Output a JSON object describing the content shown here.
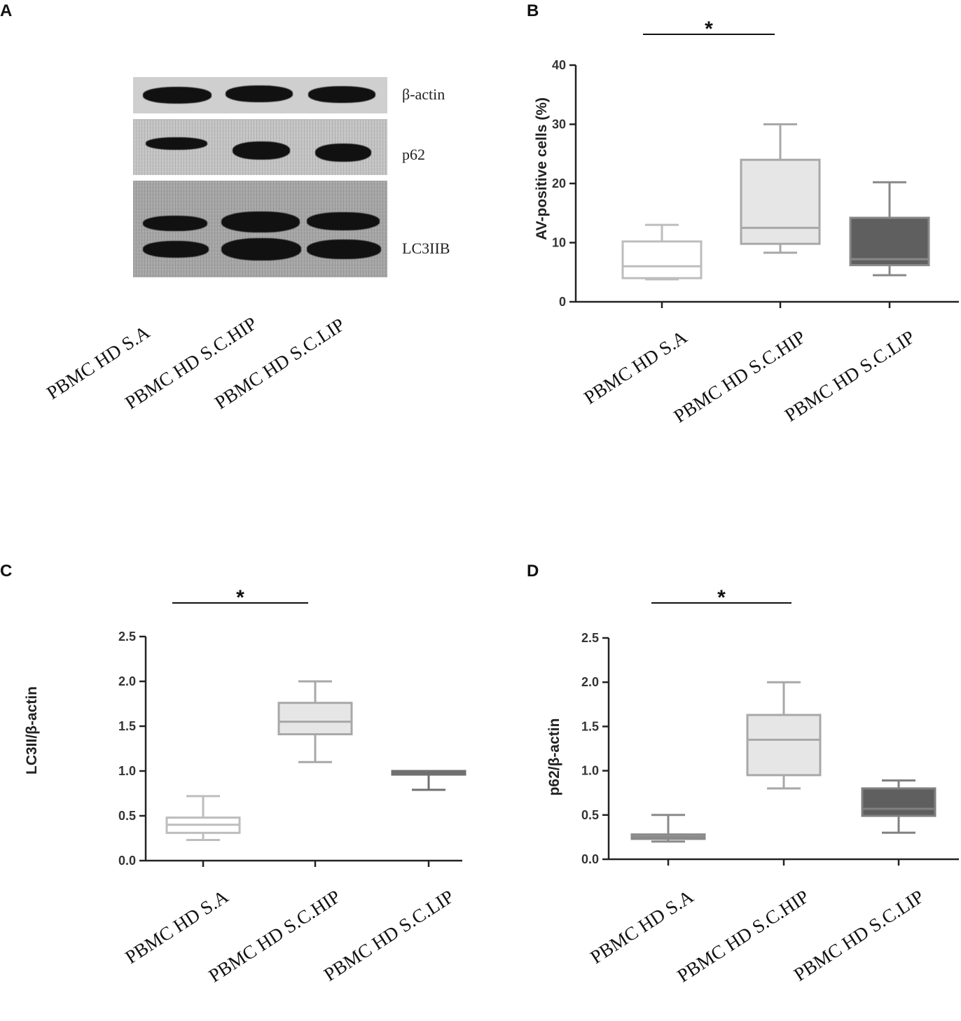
{
  "panels": {
    "a": {
      "letter": "A",
      "blot_labels": [
        "β-actin",
        "p62",
        "LC3IIB"
      ],
      "lane_labels": [
        "PBMC HD S.A",
        "PBMC HD S.C.HIP",
        "PBMC HD S.C.LIP"
      ]
    },
    "b": {
      "letter": "B"
    },
    "c": {
      "letter": "C"
    },
    "d": {
      "letter": "D"
    }
  },
  "chart_data": [
    {
      "id": "b",
      "type": "box",
      "categories": [
        "PBMC HD S.A",
        "PBMC HD S.C.HIP",
        "PBMC HD S.C.LIP"
      ],
      "ylabel": "AV-positive cells (%)",
      "ylim": [
        0,
        40
      ],
      "yticks": [
        0,
        10,
        20,
        30,
        40
      ],
      "boxes": [
        {
          "min": 3.8,
          "q1": 4.0,
          "median": 6.0,
          "q3": 10.2,
          "max": 13.0,
          "fill": "#ffffff",
          "stroke": "#bdbdbd"
        },
        {
          "min": 8.3,
          "q1": 9.8,
          "median": 12.5,
          "q3": 24.0,
          "max": 30.0,
          "fill": "#e6e6e6",
          "stroke": "#a8a8a8"
        },
        {
          "min": 4.5,
          "q1": 6.2,
          "median": 7.2,
          "q3": 14.2,
          "max": 20.2,
          "fill": "#5f5f5f",
          "stroke": "#888888"
        }
      ],
      "significance": [
        {
          "from": 0,
          "to": 1,
          "label": "*"
        }
      ]
    },
    {
      "id": "c",
      "type": "box",
      "categories": [
        "PBMC HD S.A",
        "PBMC HD S.C.HIP",
        "PBMC HD S.C.LIP"
      ],
      "ylabel": "LC3II/β-actin",
      "ylim": [
        0,
        2.5
      ],
      "yticks": [
        "0.0",
        "0.5",
        "1.0",
        "1.5",
        "2.0",
        "2.5"
      ],
      "boxes": [
        {
          "min": 0.23,
          "q1": 0.31,
          "median": 0.4,
          "q3": 0.48,
          "max": 0.72,
          "fill": "#ffffff",
          "stroke": "#bdbdbd"
        },
        {
          "min": 1.1,
          "q1": 1.41,
          "median": 1.55,
          "q3": 1.76,
          "max": 2.0,
          "fill": "#e6e6e6",
          "stroke": "#a8a8a8"
        },
        {
          "min": 0.79,
          "q1": 0.96,
          "median": 0.98,
          "q3": 1.0,
          "max": 1.0,
          "fill": "#5f5f5f",
          "stroke": "#707070"
        }
      ],
      "significance": [
        {
          "from": 0,
          "to": 1,
          "label": "*"
        }
      ]
    },
    {
      "id": "d",
      "type": "box",
      "categories": [
        "PBMC HD S.A",
        "PBMC HD S.C.HIP",
        "PBMC HD S.C.LIP"
      ],
      "ylabel": "p62/β-actin",
      "ylim": [
        0,
        2.5
      ],
      "yticks": [
        "0.0",
        "0.5",
        "1.0",
        "1.5",
        "2.0",
        "2.5"
      ],
      "boxes": [
        {
          "min": 0.2,
          "q1": 0.23,
          "median": 0.25,
          "q3": 0.28,
          "max": 0.5,
          "fill": "#9a9a9a",
          "stroke": "#8a8a8a"
        },
        {
          "min": 0.8,
          "q1": 0.95,
          "median": 1.35,
          "q3": 1.63,
          "max": 2.0,
          "fill": "#e6e6e6",
          "stroke": "#a8a8a8"
        },
        {
          "min": 0.3,
          "q1": 0.49,
          "median": 0.57,
          "q3": 0.8,
          "max": 0.89,
          "fill": "#5f5f5f",
          "stroke": "#808080"
        }
      ],
      "significance": [
        {
          "from": 0,
          "to": 1,
          "label": "*"
        }
      ]
    }
  ]
}
